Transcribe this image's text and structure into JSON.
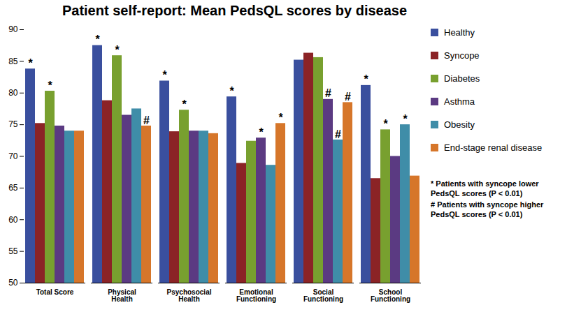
{
  "chart_data": {
    "type": "bar",
    "title": "Patient self-report: Mean PedsQL scores by disease",
    "categories": [
      "Total Score",
      "Physical Health",
      "Psychosocial Health",
      "Emotional Functioning",
      "Social Functioning",
      "School Functioning"
    ],
    "series": [
      {
        "name": "Healthy",
        "color": "#3a4f9e",
        "values": [
          83.8,
          87.5,
          81.9,
          79.4,
          85.2,
          81.2
        ],
        "markers": [
          "*",
          "*",
          "*",
          "*",
          null,
          "*"
        ]
      },
      {
        "name": "Syncope",
        "color": "#8b2326",
        "values": [
          75.2,
          78.8,
          73.9,
          68.9,
          86.3,
          66.5
        ],
        "markers": [
          null,
          null,
          null,
          null,
          null,
          null
        ]
      },
      {
        "name": "Diabetes",
        "color": "#78a02f",
        "values": [
          80.3,
          85.9,
          77.3,
          72.4,
          85.6,
          74.2
        ],
        "markers": [
          "*",
          "*",
          "*",
          null,
          null,
          "*"
        ]
      },
      {
        "name": "Asthma",
        "color": "#5b3a82",
        "values": [
          74.8,
          76.5,
          74.0,
          72.9,
          79.0,
          70.0
        ],
        "markers": [
          null,
          null,
          null,
          "*",
          "#",
          null
        ]
      },
      {
        "name": "Obesity",
        "color": "#3f8da8",
        "values": [
          74.0,
          77.5,
          74.0,
          68.6,
          72.6,
          75.0
        ],
        "markers": [
          null,
          null,
          null,
          null,
          "#",
          "*"
        ]
      },
      {
        "name": "End-stage renal disease",
        "color": "#d6762a",
        "values": [
          74.0,
          74.8,
          73.6,
          75.2,
          78.5,
          66.9
        ],
        "markers": [
          null,
          "#",
          null,
          "*",
          "#",
          null
        ]
      }
    ],
    "annotations": [
      "* Patients with syncope lower PedsQL scores (P < 0.01)",
      "# Patients with syncope higher PedsQL scores (P < 0.01)"
    ],
    "ylim": [
      50,
      90
    ],
    "yticks": [
      50,
      55,
      60,
      65,
      70,
      75,
      80,
      85,
      90
    ],
    "grid": false,
    "legend": "right"
  }
}
